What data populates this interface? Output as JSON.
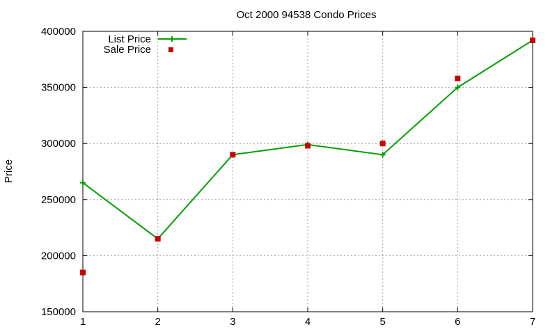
{
  "chart_data": {
    "type": "line",
    "title": "Oct 2000 94538 Condo Prices",
    "xlabel": "",
    "ylabel": "Price",
    "x": [
      1,
      2,
      3,
      4,
      5,
      6,
      7
    ],
    "xlim": [
      1,
      7
    ],
    "ylim": [
      150000,
      400000
    ],
    "xticks": [
      1,
      2,
      3,
      4,
      5,
      6,
      7
    ],
    "yticks": [
      150000,
      200000,
      250000,
      300000,
      350000,
      400000
    ],
    "grid": true,
    "legend_position": "top-left",
    "series": [
      {
        "name": "List Price",
        "style": "line+plus-markers",
        "color": "#00a000",
        "values": [
          265000,
          215000,
          290000,
          299000,
          290000,
          350000,
          392000
        ]
      },
      {
        "name": "Sale Price",
        "style": "square-markers",
        "color": "#cc0000",
        "values": [
          185000,
          215000,
          290000,
          298000,
          300000,
          358000,
          392000
        ]
      }
    ]
  }
}
